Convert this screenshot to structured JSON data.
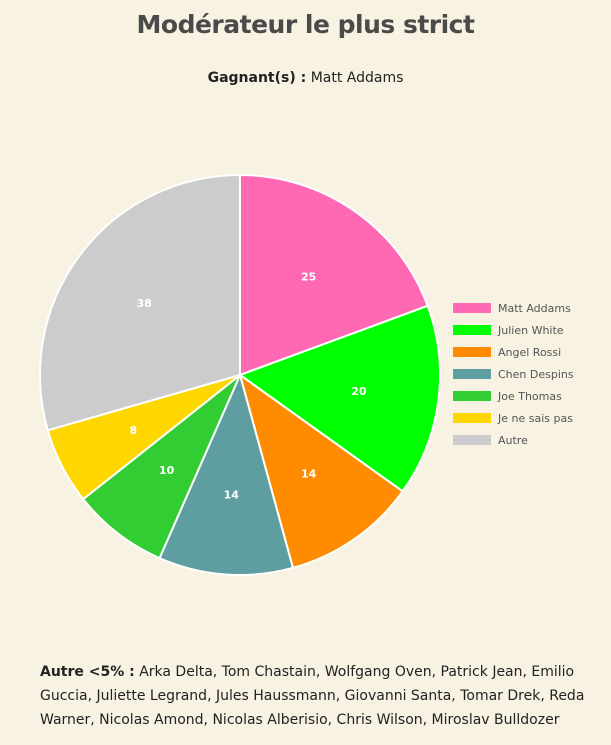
{
  "title": "Modérateur le plus strict",
  "winner": {
    "label": "Gagnant(s) :",
    "value": "Matt Addams"
  },
  "footer": {
    "label": "Autre <5% :",
    "names": "Arka Delta, Tom Chastain, Wolfgang Oven, Patrick Jean, Emilio Guccia, Juliette Legrand, Jules Haussmann, Giovanni Santa, Tomar Drek, Reda Warner, Nicolas Amond, Nicolas Alberisio, Chris Wilson, Miroslav Bulldozer"
  },
  "chart_data": {
    "type": "pie",
    "legend_position": "right",
    "slices": [
      {
        "label": "Matt Addams",
        "value": 25,
        "color": "#ff69b4"
      },
      {
        "label": "Julien White",
        "value": 20,
        "color": "#00ff00"
      },
      {
        "label": "Angel Rossi",
        "value": 14,
        "color": "#ff8c00"
      },
      {
        "label": "Chen Despins",
        "value": 14,
        "color": "#5f9ea0"
      },
      {
        "label": "Joe Thomas",
        "value": 10,
        "color": "#32cd32"
      },
      {
        "label": "Je ne sais pas",
        "value": 8,
        "color": "#ffd700"
      },
      {
        "label": "Autre",
        "value": 38,
        "color": "#cccccc"
      }
    ]
  }
}
